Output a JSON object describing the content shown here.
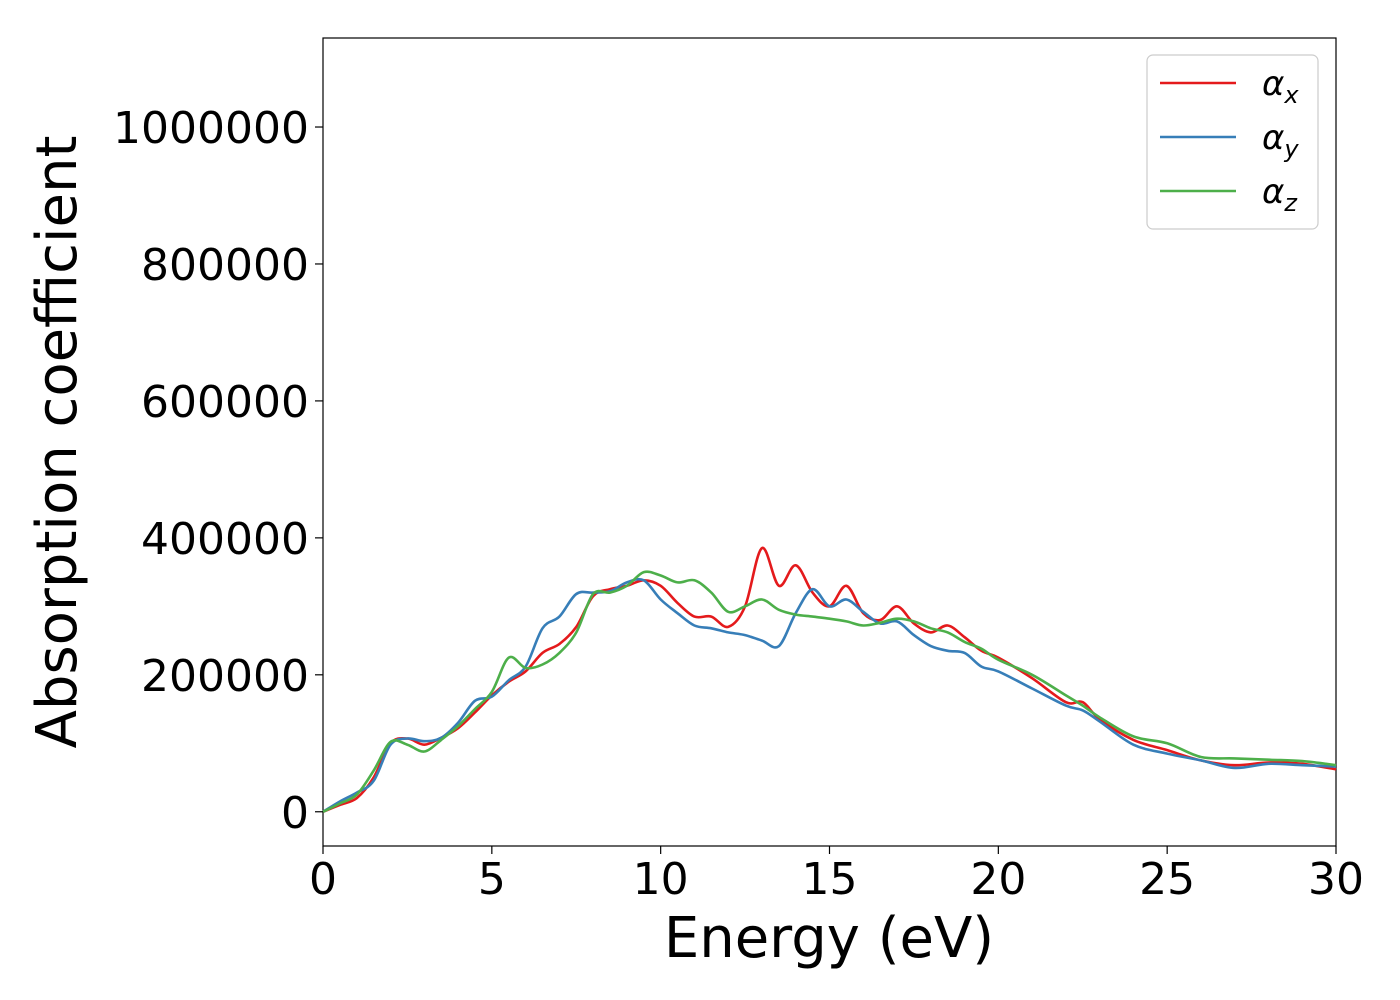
{
  "chart_data": {
    "type": "line",
    "title": "",
    "xlabel": "Energy (eV)",
    "ylabel": "Absorption coefficient",
    "xlim": [
      0,
      30
    ],
    "ylim": [
      -50000,
      1130000
    ],
    "xticks": [
      0,
      5,
      10,
      15,
      20,
      25,
      30
    ],
    "xtick_labels": [
      "0",
      "5",
      "10",
      "15",
      "20",
      "25",
      "30"
    ],
    "yticks": [
      0,
      200000,
      400000,
      600000,
      800000,
      1000000
    ],
    "ytick_labels": [
      "0",
      "200000",
      "400000",
      "600000",
      "800000",
      "1000000"
    ],
    "grid": false,
    "legend_position": "top-right",
    "series": [
      {
        "name": "α_x",
        "color": "#e41a1c",
        "x": [
          0,
          0.5,
          1,
          1.5,
          2,
          2.5,
          3,
          3.5,
          4,
          4.5,
          5,
          5.5,
          6,
          6.5,
          7,
          7.5,
          8,
          8.5,
          9,
          9.5,
          10,
          10.5,
          11,
          11.5,
          12,
          12.5,
          13,
          13.5,
          14,
          14.5,
          15,
          15.5,
          16,
          16.5,
          17,
          17.5,
          18,
          18.5,
          19,
          19.5,
          20,
          21,
          22,
          22.5,
          23,
          24,
          25,
          26,
          27,
          28,
          29,
          30
        ],
        "y": [
          0,
          10000,
          20000,
          50000,
          100000,
          107000,
          98000,
          108000,
          122000,
          145000,
          170000,
          190000,
          205000,
          232000,
          245000,
          270000,
          315000,
          325000,
          330000,
          338000,
          330000,
          305000,
          285000,
          285000,
          270000,
          300000,
          385000,
          330000,
          360000,
          320000,
          300000,
          330000,
          290000,
          280000,
          300000,
          275000,
          262000,
          272000,
          255000,
          235000,
          225000,
          195000,
          160000,
          160000,
          135000,
          105000,
          90000,
          75000,
          68000,
          72000,
          70000,
          62000
        ]
      },
      {
        "name": "α_y",
        "color": "#377eb8",
        "x": [
          0,
          0.5,
          1,
          1.5,
          2,
          2.5,
          3,
          3.5,
          4,
          4.5,
          5,
          5.5,
          6,
          6.5,
          7,
          7.5,
          8,
          8.5,
          9,
          9.5,
          10,
          10.5,
          11,
          11.5,
          12,
          12.5,
          13,
          13.5,
          14,
          14.5,
          15,
          15.5,
          16,
          16.5,
          17,
          17.5,
          18,
          18.5,
          19,
          19.5,
          20,
          21,
          22,
          22.5,
          23,
          24,
          25,
          26,
          27,
          28,
          29,
          30
        ],
        "y": [
          0,
          15000,
          28000,
          45000,
          98000,
          107000,
          103000,
          108000,
          130000,
          162000,
          168000,
          192000,
          212000,
          268000,
          285000,
          318000,
          320000,
          322000,
          335000,
          338000,
          310000,
          290000,
          272000,
          268000,
          262000,
          258000,
          250000,
          242000,
          290000,
          325000,
          300000,
          310000,
          292000,
          275000,
          278000,
          258000,
          242000,
          235000,
          232000,
          212000,
          205000,
          180000,
          155000,
          148000,
          132000,
          98000,
          85000,
          75000,
          64000,
          70000,
          68000,
          66000
        ]
      },
      {
        "name": "α_z",
        "color": "#4daf4a",
        "x": [
          0,
          0.5,
          1,
          1.5,
          2,
          2.5,
          3,
          3.5,
          4,
          4.5,
          5,
          5.5,
          6,
          6.5,
          7,
          7.5,
          8,
          8.5,
          9,
          9.5,
          10,
          10.5,
          11,
          11.5,
          12,
          12.5,
          13,
          13.5,
          14,
          14.5,
          15,
          15.5,
          16,
          16.5,
          17,
          17.5,
          18,
          18.5,
          19,
          19.5,
          20,
          21,
          22,
          22.5,
          23,
          24,
          25,
          26,
          27,
          28,
          29,
          30
        ],
        "y": [
          0,
          12000,
          25000,
          60000,
          102000,
          98000,
          88000,
          105000,
          125000,
          150000,
          175000,
          225000,
          210000,
          215000,
          232000,
          262000,
          318000,
          320000,
          330000,
          350000,
          345000,
          335000,
          338000,
          320000,
          292000,
          300000,
          310000,
          295000,
          288000,
          285000,
          282000,
          278000,
          272000,
          276000,
          282000,
          278000,
          268000,
          262000,
          248000,
          238000,
          222000,
          200000,
          170000,
          155000,
          138000,
          110000,
          100000,
          80000,
          78000,
          76000,
          74000,
          68000
        ]
      }
    ]
  }
}
